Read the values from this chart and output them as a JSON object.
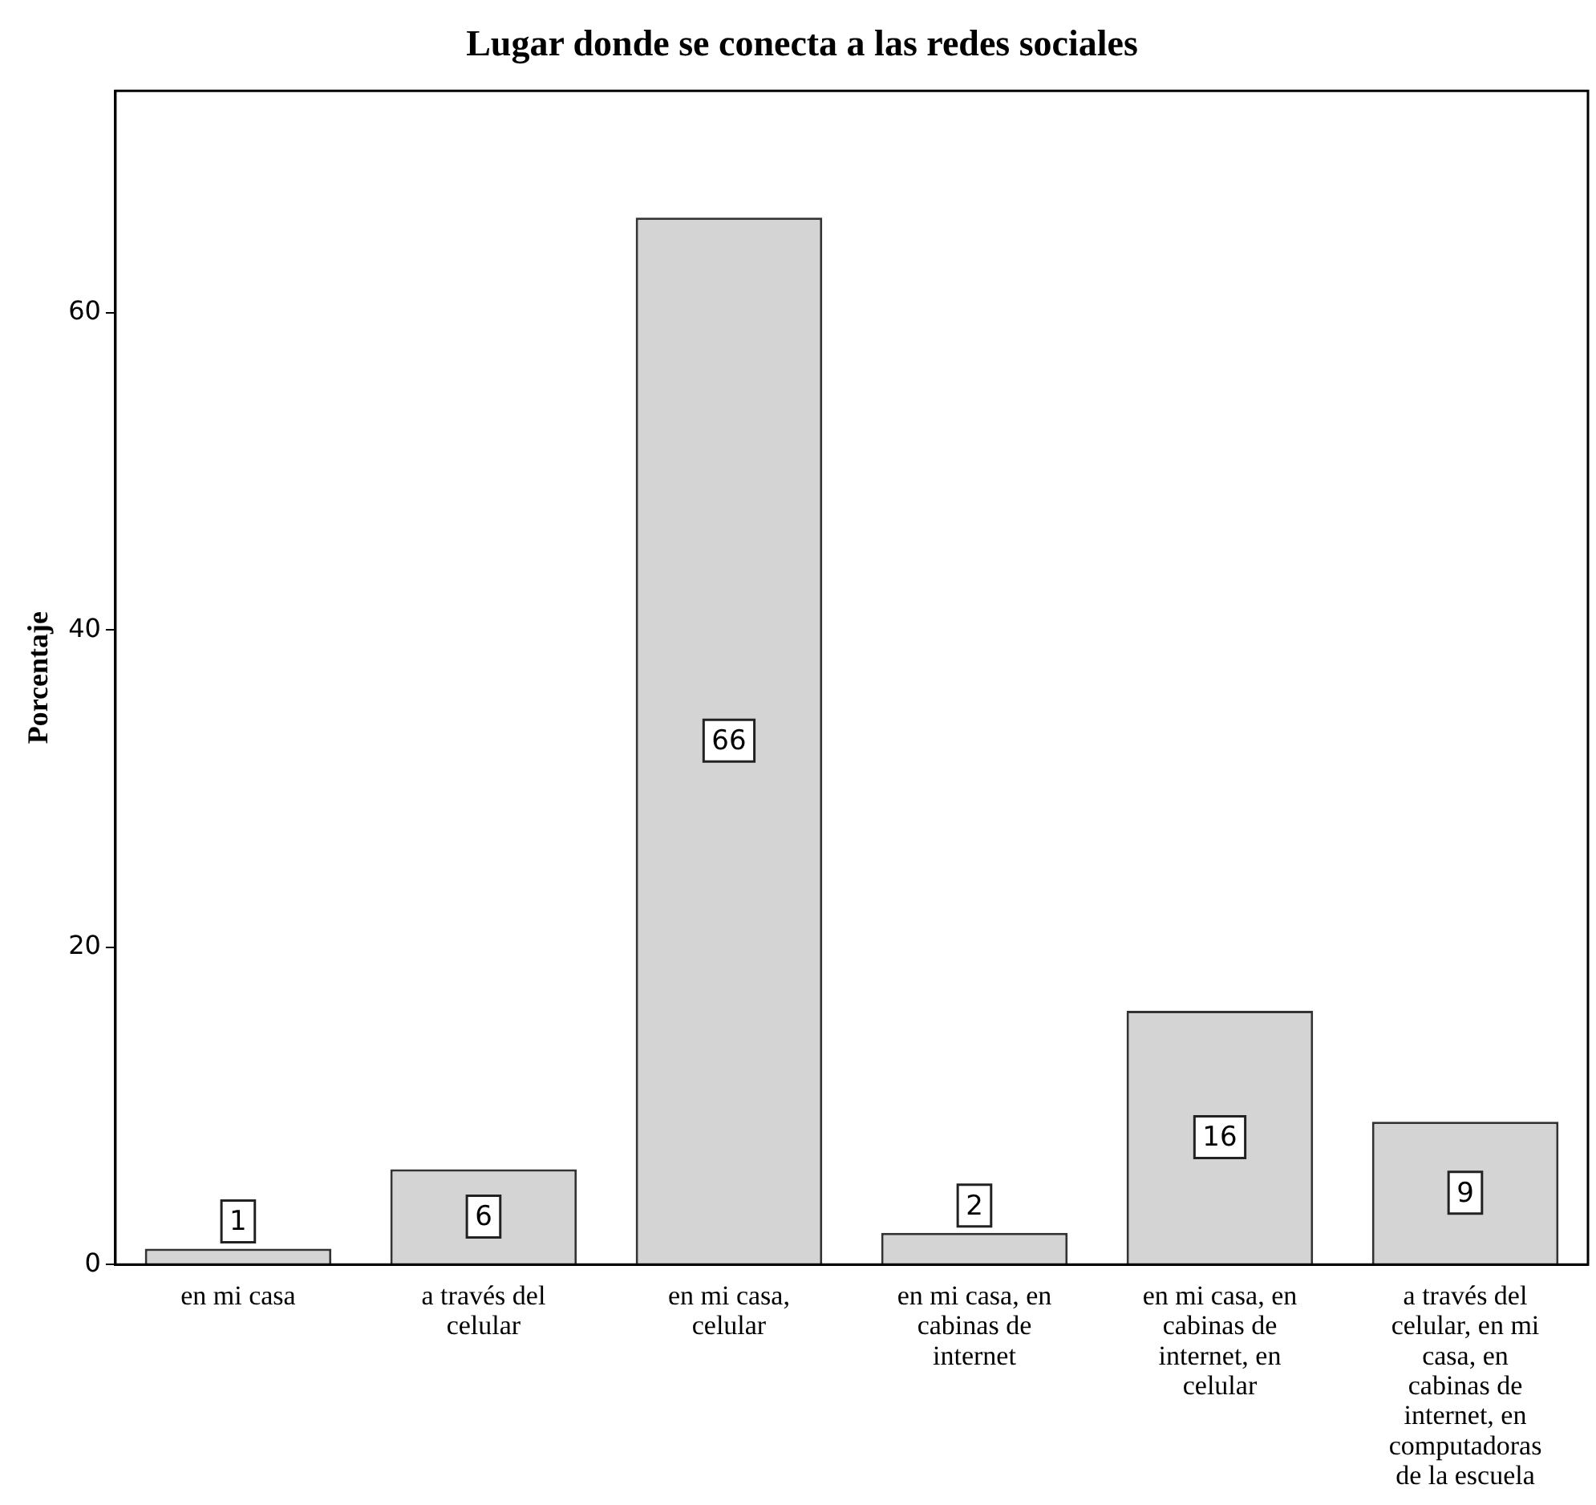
{
  "chart_data": {
    "type": "bar",
    "title": "Lugar donde se conecta a las redes sociales",
    "ylabel": "Porcentaje",
    "categories": [
      "en mi casa",
      "a través del celular",
      "en mi casa, celular",
      "en mi casa, en cabinas de internet",
      "en mi casa, en cabinas de internet, en celular",
      "a través del celular, en mi casa, en cabinas de internet, en computadoras de la escuela"
    ],
    "values": [
      1,
      6,
      66,
      2,
      16,
      9
    ],
    "color": "#d4d4d4",
    "ylim": [
      0,
      74
    ],
    "yticks": [
      0,
      20,
      40,
      60
    ],
    "data_labels": true,
    "grid": false,
    "legend": false
  }
}
